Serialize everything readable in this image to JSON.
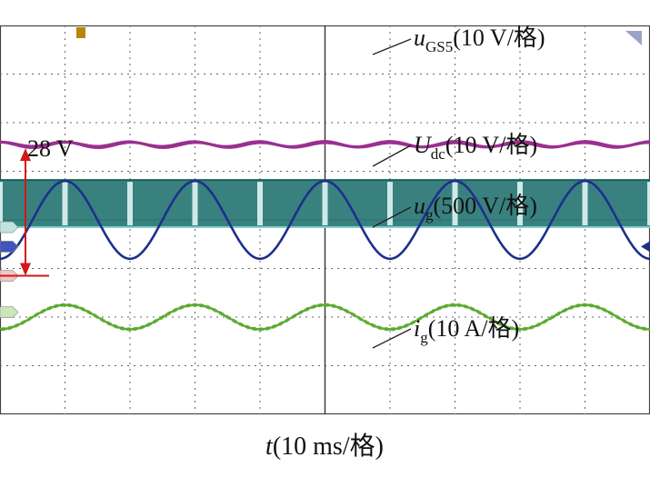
{
  "chart_data": {
    "type": "line",
    "title": "",
    "xlabel": {
      "var": "t",
      "unit": "(10 ms/格)"
    },
    "grid": true,
    "time_per_div_ms": 10,
    "divisions": 10,
    "series": [
      {
        "name": "uGS5",
        "channel": "C3",
        "color": "#2e7a78",
        "scale": "(10 V/格)",
        "label": {
          "main": "u",
          "sub": "GS5",
          "scale": "(10 V/格)"
        },
        "kind": "pwm",
        "low_div": -0.15,
        "high_div": 0.82,
        "carrier_period_ms": 5.0,
        "note_zero_width": "dense switching band"
      },
      {
        "name": "Udc",
        "channel": "C2",
        "color": "#9a2f8f",
        "scale": "(10 V/格)",
        "label": {
          "main": "U",
          "sub": "dc",
          "scale": "(10 V/格)"
        },
        "kind": "ripple",
        "offset_div": 1.55,
        "ripple_div": 0.05,
        "period_ms": 10
      },
      {
        "name": "ug",
        "channel": "C1",
        "color": "#1e2f8c",
        "scale": "(500 V/格)",
        "label": {
          "main": "u",
          "sub": "g",
          "scale": "(500 V/格)"
        },
        "kind": "sine",
        "offset_div": 0.0,
        "amplitude_div": 0.8,
        "period_ms": 20,
        "phase_deg": 180
      },
      {
        "name": "ig",
        "channel": "C4",
        "color": "#5aaa2e",
        "scale": "(10 A/格)",
        "label": {
          "main": "i",
          "sub": "g",
          "scale": "(10 A/格)"
        },
        "kind": "sine",
        "offset_div": -2.0,
        "amplitude_div": 0.25,
        "period_ms": 20,
        "phase_deg": 180
      }
    ],
    "annotation": {
      "text": "28 V",
      "from": "Udc",
      "to_div": -1.15
    }
  }
}
